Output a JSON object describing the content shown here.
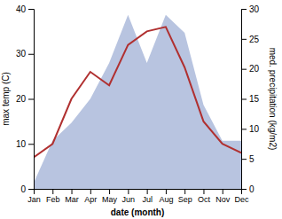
{
  "chart_data": {
    "type": "line",
    "categories": [
      "Jan",
      "Feb",
      "Mar",
      "Apr",
      "May",
      "Jun",
      "Jul",
      "Aug",
      "Sep",
      "Oct",
      "Nov",
      "Dec"
    ],
    "xlabel": "date (month)",
    "ylabel": "max temp (C)",
    "y2label": "med. precipitation (kg/m2)",
    "ylim": [
      0,
      40
    ],
    "yticks": [
      0,
      10,
      20,
      30,
      40
    ],
    "y2lim": [
      0,
      30
    ],
    "y2ticks": [
      0,
      5,
      10,
      15,
      20,
      25,
      30
    ],
    "grid": false,
    "series": [
      {
        "type": "area",
        "axis": "y2",
        "color": "#b8c4e0",
        "values": [
          1,
          8,
          11,
          15,
          21,
          29,
          21,
          29,
          26,
          14,
          8,
          8
        ]
      },
      {
        "type": "line",
        "color": "#b03030",
        "values": [
          7,
          10,
          20,
          26,
          23,
          32,
          35,
          36,
          27,
          15,
          10,
          8
        ]
      }
    ]
  }
}
